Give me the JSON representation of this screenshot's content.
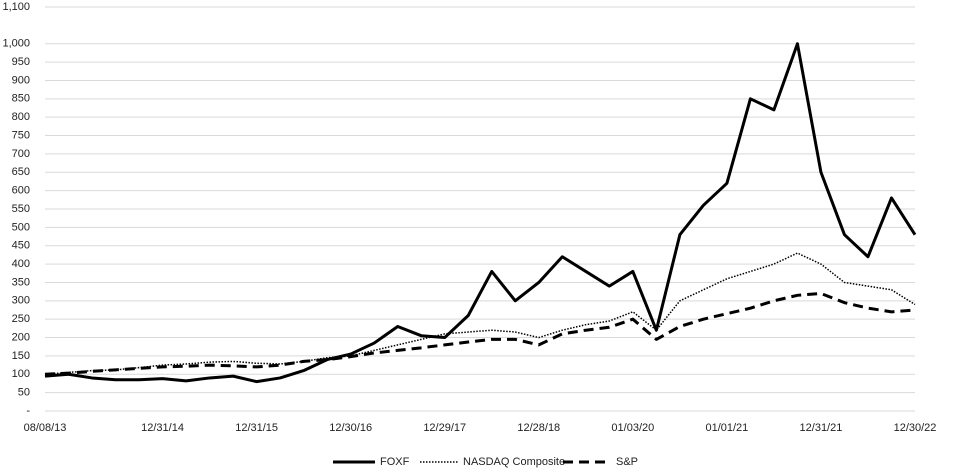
{
  "chart_data": {
    "type": "line",
    "categories": [
      "08/08/13",
      null,
      null,
      null,
      null,
      "12/31/14",
      null,
      null,
      null,
      "12/31/15",
      null,
      null,
      null,
      "12/30/16",
      null,
      null,
      null,
      "12/29/17",
      null,
      null,
      null,
      "12/28/18",
      null,
      null,
      null,
      "01/03/20",
      null,
      null,
      null,
      "01/01/21",
      null,
      null,
      null,
      "12/31/21",
      null,
      null,
      null,
      "12/30/22"
    ],
    "series": [
      {
        "name": "FOXF",
        "color": "#000000",
        "dash": "solid",
        "width": 3,
        "values": [
          95,
          100,
          90,
          85,
          85,
          88,
          82,
          90,
          95,
          80,
          90,
          110,
          140,
          155,
          185,
          230,
          205,
          200,
          260,
          380,
          300,
          350,
          420,
          380,
          340,
          380,
          220,
          480,
          560,
          620,
          850,
          820,
          1000,
          650,
          480,
          420,
          580,
          480
        ]
      },
      {
        "name": "NASDAQ Composite",
        "color": "#000000",
        "dash": "dotted",
        "width": 1.5,
        "values": [
          100,
          105,
          110,
          112,
          118,
          125,
          128,
          133,
          135,
          130,
          128,
          135,
          145,
          150,
          165,
          180,
          195,
          210,
          215,
          220,
          215,
          200,
          220,
          235,
          245,
          270,
          220,
          300,
          330,
          360,
          380,
          400,
          430,
          400,
          350,
          340,
          330,
          290
        ]
      },
      {
        "name": "S&P",
        "color": "#000000",
        "dash": "dashed",
        "width": 3,
        "values": [
          100,
          103,
          108,
          112,
          116,
          120,
          122,
          125,
          123,
          120,
          125,
          135,
          140,
          148,
          158,
          165,
          172,
          180,
          188,
          195,
          195,
          180,
          210,
          220,
          228,
          250,
          195,
          230,
          250,
          265,
          280,
          300,
          315,
          320,
          295,
          280,
          270,
          275
        ]
      }
    ],
    "ylim": [
      0,
      1100
    ],
    "yticks": [
      {
        "value": 0,
        "label": "-"
      },
      50,
      100,
      150,
      200,
      250,
      300,
      350,
      400,
      450,
      500,
      550,
      600,
      650,
      700,
      750,
      800,
      850,
      900,
      950,
      {
        "value": 1000,
        "label": "1,000"
      },
      {
        "value": 1100,
        "label": "1,100"
      }
    ],
    "grid": true,
    "legend": "bottom"
  }
}
